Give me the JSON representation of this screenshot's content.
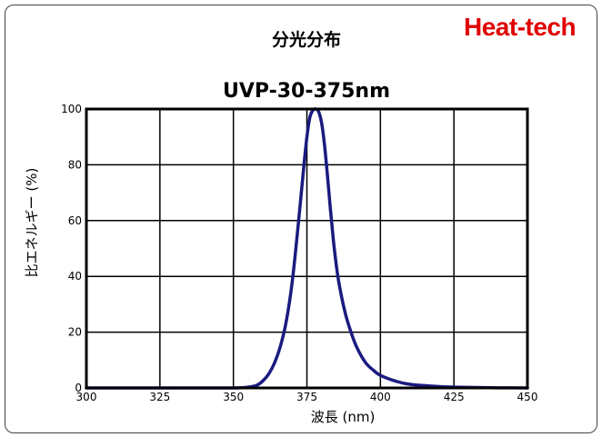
{
  "brand": "Heat-tech",
  "chart_data": {
    "type": "line",
    "title": "分光分布",
    "subtitle": "UVP-30-375nm",
    "xlabel": "波長 (nm)",
    "ylabel": "比エネルギー (%)",
    "xlim": [
      300,
      450
    ],
    "ylim": [
      0,
      100
    ],
    "xticks": [
      300,
      325,
      350,
      375,
      400,
      425,
      450
    ],
    "yticks": [
      0,
      20,
      40,
      60,
      80,
      100
    ],
    "grid": true,
    "line_color": "#1a1a80",
    "series": [
      {
        "x": [
          300,
          330,
          350,
          355,
          358,
          360,
          362,
          364,
          366,
          368,
          370,
          372,
          374,
          375,
          376,
          377,
          378,
          379,
          380,
          381,
          382,
          383,
          384,
          385,
          386,
          388,
          390,
          392,
          395,
          398,
          400,
          405,
          410,
          420,
          430,
          440,
          450
        ],
        "values": [
          0,
          0,
          0,
          0.3,
          1,
          2.5,
          5,
          9,
          15,
          24,
          38,
          58,
          80,
          90,
          97,
          99.5,
          100,
          99,
          95,
          87,
          76,
          64,
          53,
          44,
          37,
          27,
          20,
          14.5,
          9,
          6,
          4.5,
          2.5,
          1.3,
          0.5,
          0.2,
          0.05,
          0
        ]
      }
    ]
  }
}
